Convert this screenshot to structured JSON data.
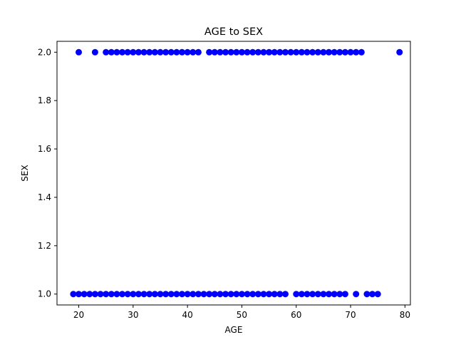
{
  "chart_data": {
    "type": "scatter",
    "title": "AGE to SEX",
    "xlabel": "AGE",
    "ylabel": "SEX",
    "xlim": [
      16,
      81
    ],
    "ylim": [
      0.955,
      2.045
    ],
    "xticks": [
      20,
      30,
      40,
      50,
      60,
      70,
      80
    ],
    "yticks": [
      1.0,
      1.2,
      1.4,
      1.6,
      1.8,
      2.0
    ],
    "ytick_labels": [
      "1.0",
      "1.2",
      "1.4",
      "1.6",
      "1.8",
      "2.0"
    ],
    "grid": false,
    "marker_color": "#0000ff",
    "series": [
      {
        "x": [
          20,
          23,
          25,
          26,
          27,
          28,
          29,
          30,
          31,
          32,
          33,
          34,
          35,
          36,
          37,
          38,
          39,
          40,
          41,
          42,
          44,
          45,
          46,
          47,
          48,
          49,
          50,
          51,
          52,
          53,
          54,
          55,
          56,
          57,
          58,
          59,
          60,
          61,
          62,
          63,
          64,
          65,
          66,
          67,
          68,
          69,
          70,
          71,
          72,
          79,
          19,
          20,
          21,
          22,
          23,
          24,
          25,
          26,
          27,
          28,
          29,
          30,
          31,
          32,
          33,
          34,
          35,
          36,
          37,
          38,
          39,
          40,
          41,
          42,
          43,
          44,
          45,
          46,
          47,
          48,
          49,
          50,
          51,
          52,
          53,
          54,
          55,
          56,
          57,
          58,
          60,
          61,
          62,
          63,
          64,
          65,
          66,
          67,
          68,
          69,
          71,
          73,
          74,
          75
        ],
        "y": [
          2,
          2,
          2,
          2,
          2,
          2,
          2,
          2,
          2,
          2,
          2,
          2,
          2,
          2,
          2,
          2,
          2,
          2,
          2,
          2,
          2,
          2,
          2,
          2,
          2,
          2,
          2,
          2,
          2,
          2,
          2,
          2,
          2,
          2,
          2,
          2,
          2,
          2,
          2,
          2,
          2,
          2,
          2,
          2,
          2,
          2,
          2,
          2,
          2,
          2,
          1,
          1,
          1,
          1,
          1,
          1,
          1,
          1,
          1,
          1,
          1,
          1,
          1,
          1,
          1,
          1,
          1,
          1,
          1,
          1,
          1,
          1,
          1,
          1,
          1,
          1,
          1,
          1,
          1,
          1,
          1,
          1,
          1,
          1,
          1,
          1,
          1,
          1,
          1,
          1,
          1,
          1,
          1,
          1,
          1,
          1,
          1,
          1,
          1,
          1,
          1,
          1,
          1,
          1
        ]
      }
    ]
  }
}
